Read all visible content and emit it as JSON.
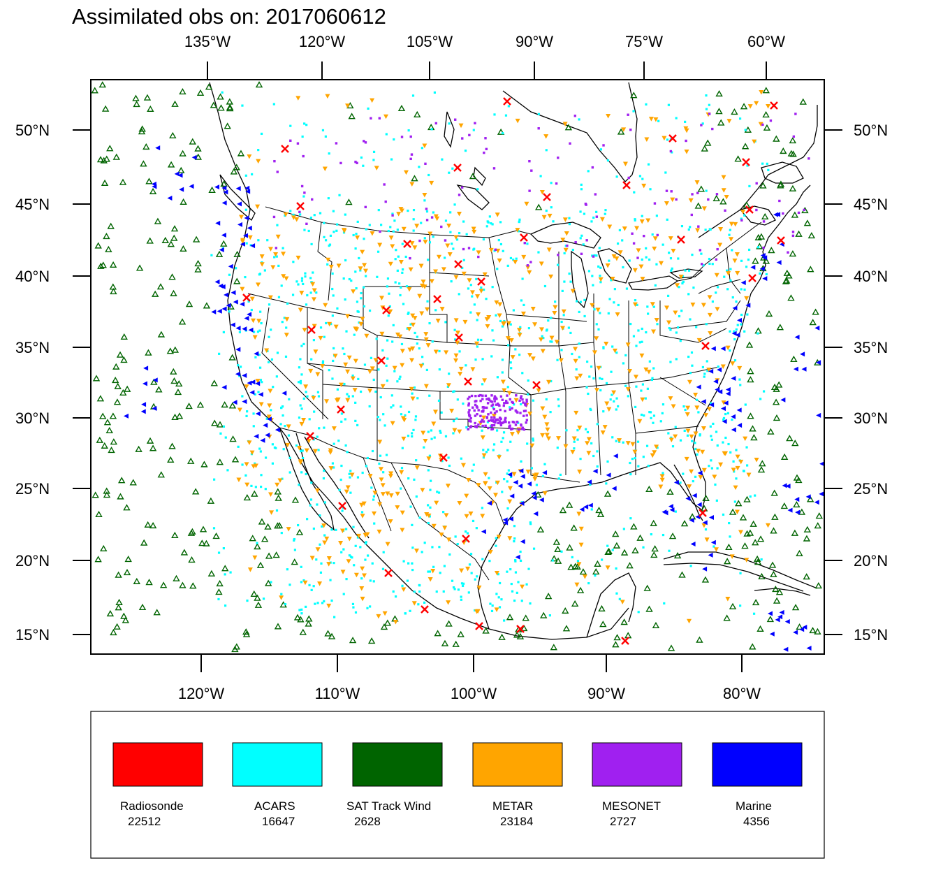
{
  "title": "Assimilated obs on: 2017060612",
  "top_lon_labels": [
    "135°W",
    "120°W",
    "105°W",
    "90°W",
    "75°W",
    "60°W"
  ],
  "bottom_lon_labels": [
    "120°W",
    "110°W",
    "100°W",
    "90°W",
    "80°W"
  ],
  "lat_labels": [
    "50°N",
    "45°N",
    "40°N",
    "35°N",
    "30°N",
    "25°N",
    "20°N",
    "15°N"
  ],
  "colors": {
    "radiosonde": "#ff0000",
    "acars": "#00ffff",
    "sat_track_wind": "#006400",
    "metar": "#ffa500",
    "mesonet": "#a020f0",
    "marine": "#0000ff"
  },
  "legend": [
    {
      "name": "Radiosonde",
      "count": "22512",
      "color": "#ff0000"
    },
    {
      "name": "ACARS",
      "count": "16647",
      "color": "#00ffff"
    },
    {
      "name": "SAT Track Wind",
      "count": "2628",
      "color": "#006400"
    },
    {
      "name": "METAR",
      "count": "23184",
      "color": "#ffa500"
    },
    {
      "name": "MESONET",
      "count": "2727",
      "color": "#a020f0"
    },
    {
      "name": "Marine",
      "count": "4356",
      "color": "#0000ff"
    }
  ]
}
